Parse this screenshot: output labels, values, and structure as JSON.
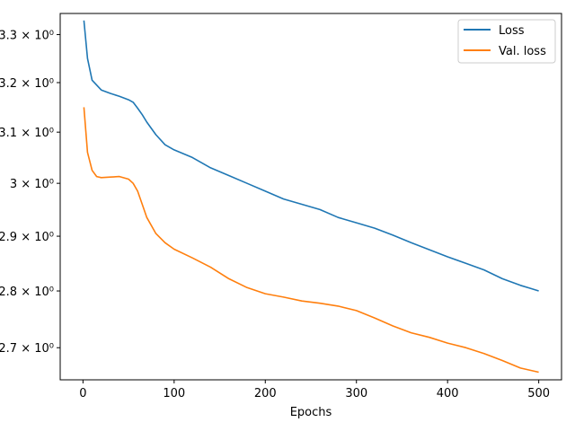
{
  "chart_data": {
    "type": "line",
    "title": "",
    "xlabel": "Epochs",
    "ylabel": "",
    "xlim": [
      -25,
      525
    ],
    "ylim": [
      2.645,
      3.345
    ],
    "yscale": "log",
    "grid": false,
    "legend_position": "top-right",
    "x_ticks": [
      0,
      100,
      200,
      300,
      400,
      500
    ],
    "x_tick_labels": [
      "0",
      "100",
      "200",
      "300",
      "400",
      "500"
    ],
    "y_ticks": [
      2.7,
      2.8,
      2.9,
      3.0,
      3.1,
      3.2,
      3.3
    ],
    "y_tick_labels": [
      "2.7 × 10⁰",
      "2.8 × 10⁰",
      "2.9 × 10⁰",
      "3 × 10⁰",
      "3.1 × 10⁰",
      "3.2 × 10⁰",
      "3.3 × 10⁰"
    ],
    "series": [
      {
        "name": "Loss",
        "color": "#1f77b4",
        "x": [
          1,
          5,
          10,
          20,
          30,
          40,
          50,
          55,
          60,
          65,
          70,
          80,
          90,
          100,
          120,
          140,
          160,
          180,
          200,
          220,
          240,
          260,
          280,
          300,
          320,
          340,
          360,
          380,
          400,
          420,
          440,
          460,
          480,
          490,
          500
        ],
        "values": [
          3.33,
          3.25,
          3.205,
          3.185,
          3.178,
          3.172,
          3.165,
          3.16,
          3.148,
          3.135,
          3.12,
          3.095,
          3.075,
          3.065,
          3.05,
          3.03,
          3.015,
          3.0,
          2.985,
          2.97,
          2.96,
          2.95,
          2.935,
          2.925,
          2.915,
          2.902,
          2.888,
          2.875,
          2.862,
          2.85,
          2.838,
          2.822,
          2.81,
          2.805,
          2.8
        ]
      },
      {
        "name": "Val. loss",
        "color": "#ff7f0e",
        "x": [
          1,
          5,
          10,
          15,
          20,
          30,
          40,
          50,
          55,
          60,
          65,
          70,
          80,
          90,
          100,
          120,
          140,
          160,
          180,
          200,
          220,
          240,
          260,
          280,
          300,
          320,
          340,
          360,
          380,
          400,
          420,
          440,
          460,
          480,
          500
        ],
        "values": [
          3.15,
          3.06,
          3.025,
          3.013,
          3.011,
          3.012,
          3.013,
          3.008,
          3.0,
          2.985,
          2.96,
          2.935,
          2.905,
          2.888,
          2.876,
          2.86,
          2.843,
          2.822,
          2.806,
          2.795,
          2.789,
          2.782,
          2.778,
          2.773,
          2.765,
          2.752,
          2.738,
          2.726,
          2.718,
          2.708,
          2.7,
          2.69,
          2.678,
          2.665,
          2.658
        ]
      }
    ]
  }
}
